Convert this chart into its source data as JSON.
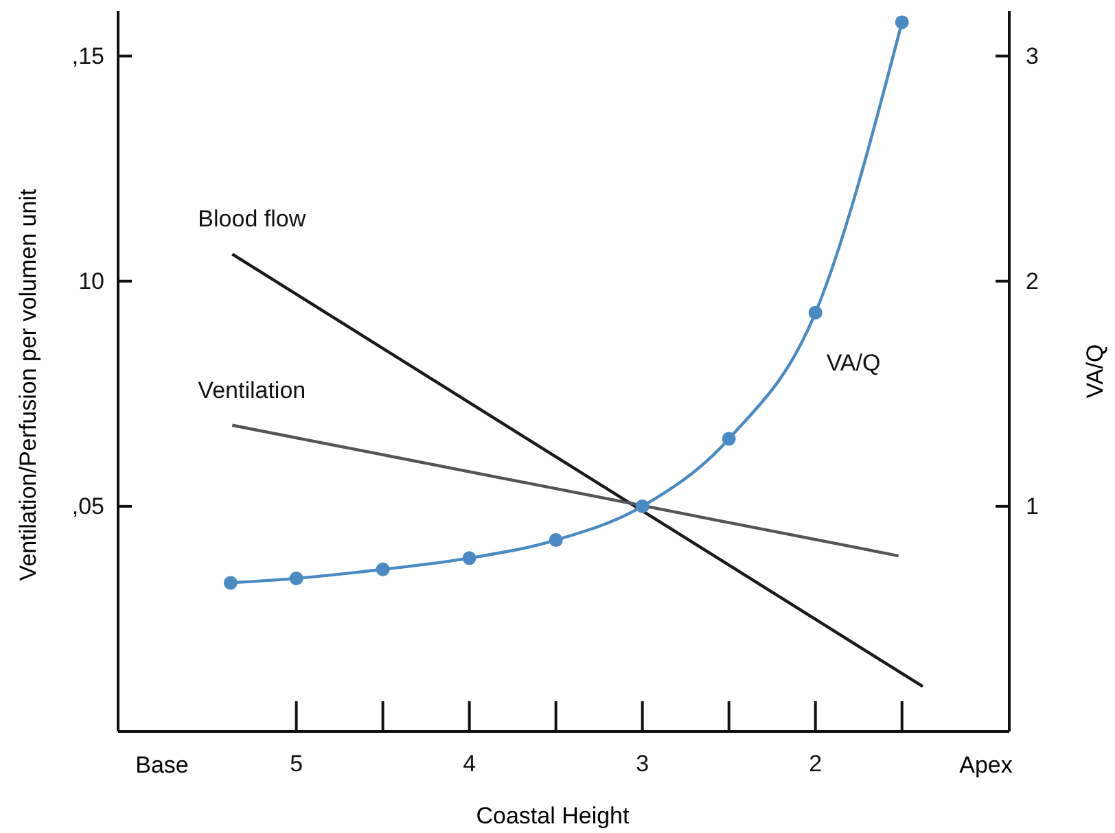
{
  "chart_data": {
    "type": "line",
    "xlabel": "Coastal Height",
    "ylabel": "Ventilation/Perfusion per volumen unit",
    "y2label": "VA/Q",
    "xlim": [
      6.03,
      0.88
    ],
    "xticks": [
      5,
      4,
      3,
      2
    ],
    "ylim": [
      0,
      16
    ],
    "yticks": [
      {
        "value": 5,
        "label": ",05"
      },
      10,
      {
        "value": 15,
        "label": ",15"
      }
    ],
    "y2lim": [
      0,
      3.2
    ],
    "y2ticks": [
      1,
      2,
      3
    ],
    "annotations": [
      "Base",
      "Apex"
    ],
    "grid": false,
    "series": [
      {
        "name": "Blood flow",
        "color": "#1a1a1a",
        "x": [
          5.37,
          1.38
        ],
        "values": [
          10.6,
          1.0
        ],
        "marker": "none"
      },
      {
        "name": "Ventilation",
        "color": "#555555",
        "x": [
          5.37,
          1.52
        ],
        "values": [
          6.8,
          3.9
        ],
        "marker": "none"
      },
      {
        "name": "VA/Q",
        "color": "#4a8ac4",
        "axis": "y2",
        "x": [
          5.38,
          5,
          4.5,
          4,
          3.5,
          3,
          2.5,
          2,
          1.5
        ],
        "values": [
          0.66,
          0.68,
          0.72,
          0.77,
          0.85,
          1.0,
          1.3,
          1.86,
          3.15
        ],
        "marker": "circle"
      }
    ]
  }
}
